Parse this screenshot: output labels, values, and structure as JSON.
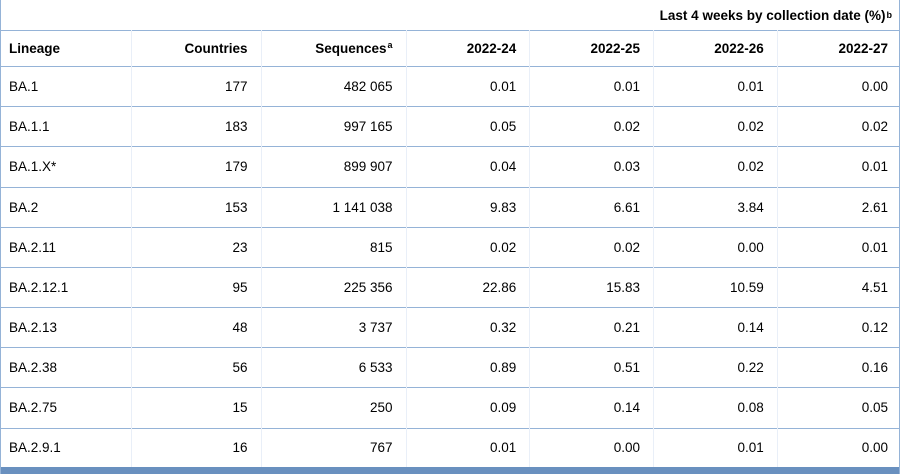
{
  "note": {
    "text": "Last 4 weeks by collection date (%)",
    "sup": "b"
  },
  "table": {
    "columns": [
      {
        "label": "Lineage",
        "sup": ""
      },
      {
        "label": "Countries",
        "sup": ""
      },
      {
        "label": "Sequences",
        "sup": "a"
      },
      {
        "label": "2022-24",
        "sup": ""
      },
      {
        "label": "2022-25",
        "sup": ""
      },
      {
        "label": "2022-26",
        "sup": ""
      },
      {
        "label": "2022-27",
        "sup": ""
      }
    ],
    "rows": [
      [
        "BA.1",
        "177",
        "482 065",
        "0.01",
        "0.01",
        "0.01",
        "0.00"
      ],
      [
        "BA.1.1",
        "183",
        "997 165",
        "0.05",
        "0.02",
        "0.02",
        "0.02"
      ],
      [
        "BA.1.X*",
        "179",
        "899 907",
        "0.04",
        "0.03",
        "0.02",
        "0.01"
      ],
      [
        "BA.2",
        "153",
        "1 141 038",
        "9.83",
        "6.61",
        "3.84",
        "2.61"
      ],
      [
        "BA.2.11",
        "23",
        "815",
        "0.02",
        "0.02",
        "0.00",
        "0.01"
      ],
      [
        "BA.2.12.1",
        "95",
        "225 356",
        "22.86",
        "15.83",
        "10.59",
        "4.51"
      ],
      [
        "BA.2.13",
        "48",
        "3 737",
        "0.32",
        "0.21",
        "0.14",
        "0.12"
      ],
      [
        "BA.2.38",
        "56",
        "6 533",
        "0.89",
        "0.51",
        "0.22",
        "0.16"
      ],
      [
        "BA.2.75",
        "15",
        "250",
        "0.09",
        "0.14",
        "0.08",
        "0.05"
      ],
      [
        "BA.2.9.1",
        "16",
        "767",
        "0.01",
        "0.00",
        "0.01",
        "0.00"
      ]
    ]
  },
  "colors": {
    "row_border": "#95b3d7",
    "column_separator": "#e9eff8",
    "bottom_bar": "#6990bf",
    "text": "#000000",
    "background": "#ffffff"
  }
}
